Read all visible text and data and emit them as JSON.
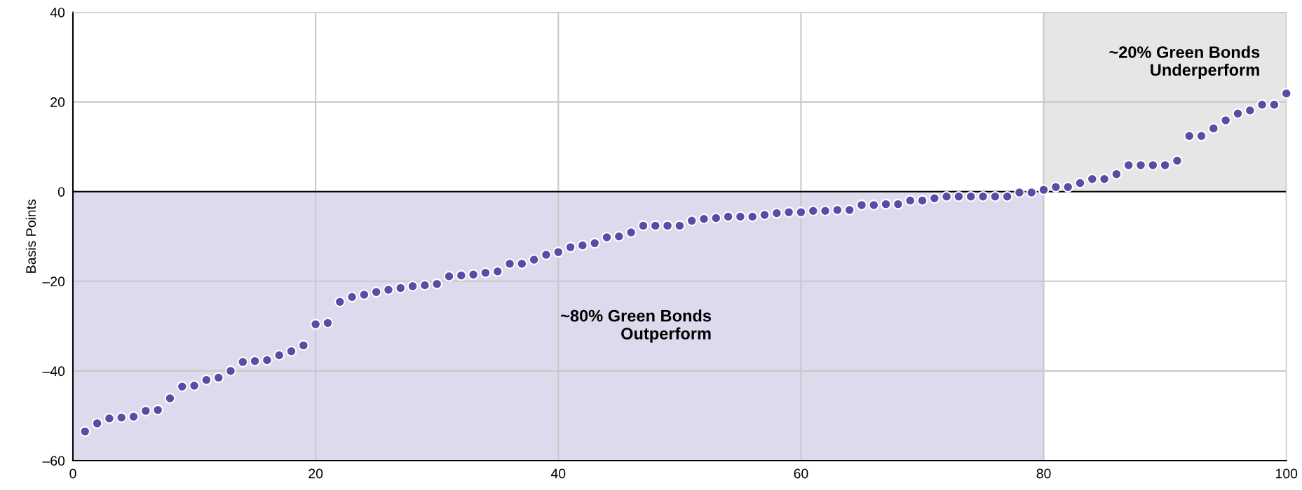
{
  "chart_data": {
    "type": "scatter",
    "ylabel": "Basis Points",
    "x": [
      1,
      2,
      3,
      4,
      5,
      6,
      7,
      8,
      9,
      10,
      11,
      12,
      13,
      14,
      15,
      16,
      17,
      18,
      19,
      20,
      21,
      22,
      23,
      24,
      25,
      26,
      27,
      28,
      29,
      30,
      31,
      32,
      33,
      34,
      35,
      36,
      37,
      38,
      39,
      40,
      41,
      42,
      43,
      44,
      45,
      46,
      47,
      48,
      49,
      50,
      51,
      52,
      53,
      54,
      55,
      56,
      57,
      58,
      59,
      60,
      61,
      62,
      63,
      64,
      65,
      66,
      67,
      68,
      69,
      70,
      71,
      72,
      73,
      74,
      75,
      76,
      77,
      78,
      79,
      80,
      81,
      82,
      83,
      84,
      85,
      86,
      87,
      88,
      89,
      90,
      91,
      92,
      93,
      94,
      95,
      96,
      97,
      98,
      99,
      100
    ],
    "series": [
      {
        "color": "#5b4ba5",
        "values": [
          -53.5,
          -51.7,
          -50.6,
          -50.4,
          -50.2,
          -48.9,
          -48.7,
          -46.1,
          -43.5,
          -43.3,
          -42.0,
          -41.5,
          -40.0,
          -38.0,
          -37.8,
          -37.6,
          -36.5,
          -35.6,
          -34.3,
          -29.6,
          -29.3,
          -24.6,
          -23.5,
          -23.0,
          -22.4,
          -21.9,
          -21.5,
          -21.1,
          -20.9,
          -20.6,
          -18.9,
          -18.7,
          -18.5,
          -18.1,
          -17.8,
          -16.1,
          -16.1,
          -15.2,
          -14.1,
          -13.5,
          -12.4,
          -12.0,
          -11.5,
          -10.2,
          -10.0,
          -9.1,
          -7.6,
          -7.6,
          -7.6,
          -7.6,
          -6.5,
          -6.1,
          -5.9,
          -5.6,
          -5.6,
          -5.6,
          -5.2,
          -4.8,
          -4.6,
          -4.6,
          -4.3,
          -4.3,
          -4.1,
          -4.1,
          -3.0,
          -3.0,
          -2.8,
          -2.8,
          -2.0,
          -2.0,
          -1.5,
          -1.1,
          -1.1,
          -1.1,
          -1.1,
          -1.1,
          -1.1,
          -0.2,
          -0.2,
          0.4,
          1.0,
          1.0,
          1.9,
          2.8,
          2.8,
          3.9,
          5.9,
          5.9,
          5.9,
          5.9,
          6.9,
          12.4,
          12.4,
          14.1,
          15.9,
          17.4,
          18.1,
          19.4,
          19.4,
          21.9
        ]
      }
    ],
    "xlim": [
      0,
      100
    ],
    "xticks": [
      0,
      20,
      40,
      60,
      80,
      100
    ],
    "ylim": [
      -60,
      40
    ],
    "yticks": [
      {
        "value": -60,
        "label": "–60"
      },
      {
        "value": -40,
        "label": "–40"
      },
      {
        "value": -20,
        "label": "–20"
      },
      0,
      20,
      40
    ],
    "grid": true,
    "marker": "circle",
    "ref_lines": [
      {
        "axis": "y",
        "value": 0,
        "color": "#000000"
      }
    ],
    "bands": [
      {
        "axis": "x",
        "from": 0,
        "to": 80,
        "label": "~80% Green Bonds\nOutperform",
        "color": "#dddaee"
      },
      {
        "axis": "x",
        "from": 80,
        "to": 100,
        "label": "~20% Green Bonds\nUnderperform",
        "color": "#e6e6e6"
      }
    ]
  }
}
